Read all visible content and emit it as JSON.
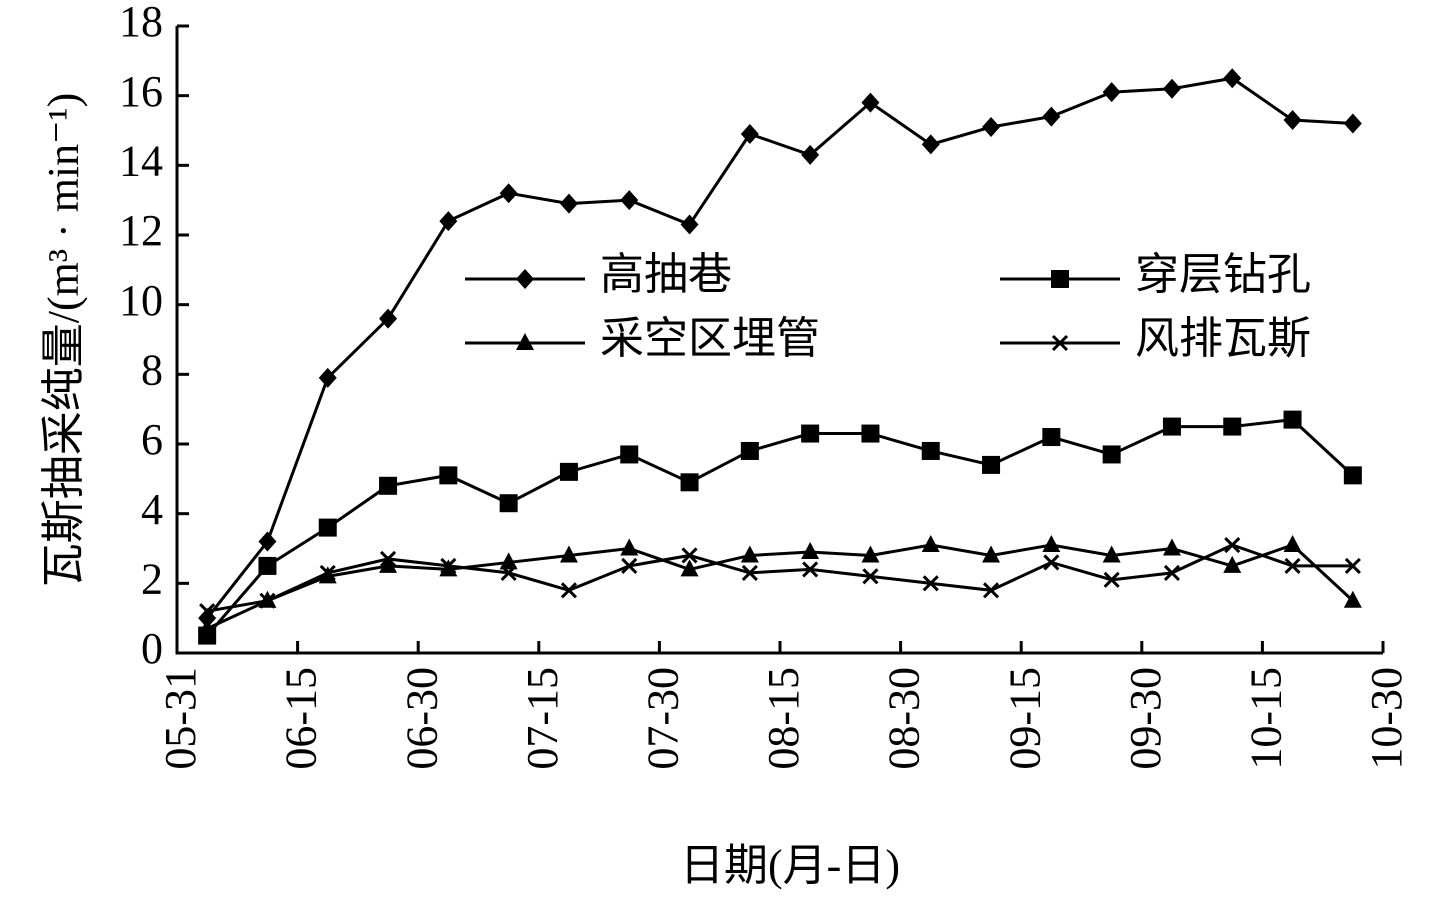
{
  "chart_data": {
    "type": "line",
    "ylabel": "瓦斯抽采纯量/(m³ · min⁻¹)",
    "xlabel": "日期(月-日)",
    "xlim": [
      0,
      10
    ],
    "xticks": [
      {
        "value": 0,
        "label": "05-31"
      },
      {
        "value": 1,
        "label": "06-15"
      },
      {
        "value": 2,
        "label": "06-30"
      },
      {
        "value": 3,
        "label": "07-15"
      },
      {
        "value": 4,
        "label": "07-30"
      },
      {
        "value": 5,
        "label": "08-15"
      },
      {
        "value": 6,
        "label": "08-30"
      },
      {
        "value": 7,
        "label": "09-15"
      },
      {
        "value": 8,
        "label": "09-30"
      },
      {
        "value": 9,
        "label": "10-15"
      },
      {
        "value": 10,
        "label": "10-30"
      }
    ],
    "ylim": [
      0,
      18
    ],
    "yticks": [
      0,
      2,
      4,
      6,
      8,
      10,
      12,
      14,
      16,
      18
    ],
    "x": [
      0.25,
      0.75,
      1.25,
      1.75,
      2.25,
      2.75,
      3.25,
      3.75,
      4.25,
      4.75,
      5.25,
      5.75,
      6.25,
      6.75,
      7.25,
      7.75,
      8.25,
      8.75,
      9.25,
      9.75
    ],
    "series": [
      {
        "name": "高抽巷",
        "color": "#000000",
        "marker": "diamond",
        "values": [
          1.0,
          3.2,
          7.9,
          9.6,
          12.4,
          13.2,
          12.9,
          13.0,
          12.3,
          14.9,
          14.3,
          15.8,
          14.6,
          15.1,
          15.4,
          16.1,
          16.2,
          16.5,
          15.3,
          15.2
        ]
      },
      {
        "name": "穿层钻孔",
        "color": "#000000",
        "marker": "square",
        "values": [
          0.5,
          2.5,
          3.6,
          4.8,
          5.1,
          4.3,
          5.2,
          5.7,
          4.9,
          5.8,
          6.3,
          6.3,
          5.8,
          5.4,
          6.2,
          5.7,
          6.5,
          6.5,
          6.7,
          5.1
        ]
      },
      {
        "name": "采空区埋管",
        "color": "#000000",
        "marker": "triangle",
        "values": [
          0.7,
          1.5,
          2.2,
          2.5,
          2.4,
          2.6,
          2.8,
          3.0,
          2.4,
          2.8,
          2.9,
          2.8,
          3.1,
          2.8,
          3.1,
          2.8,
          3.0,
          2.5,
          3.1,
          1.5
        ]
      },
      {
        "name": "风排瓦斯",
        "color": "#000000",
        "marker": "cross",
        "values": [
          1.2,
          1.5,
          2.3,
          2.7,
          2.5,
          2.3,
          1.8,
          2.5,
          2.8,
          2.3,
          2.4,
          2.2,
          2.0,
          1.8,
          2.6,
          2.1,
          2.3,
          3.1,
          2.5,
          2.5
        ]
      }
    ],
    "legend": "upper-center"
  }
}
